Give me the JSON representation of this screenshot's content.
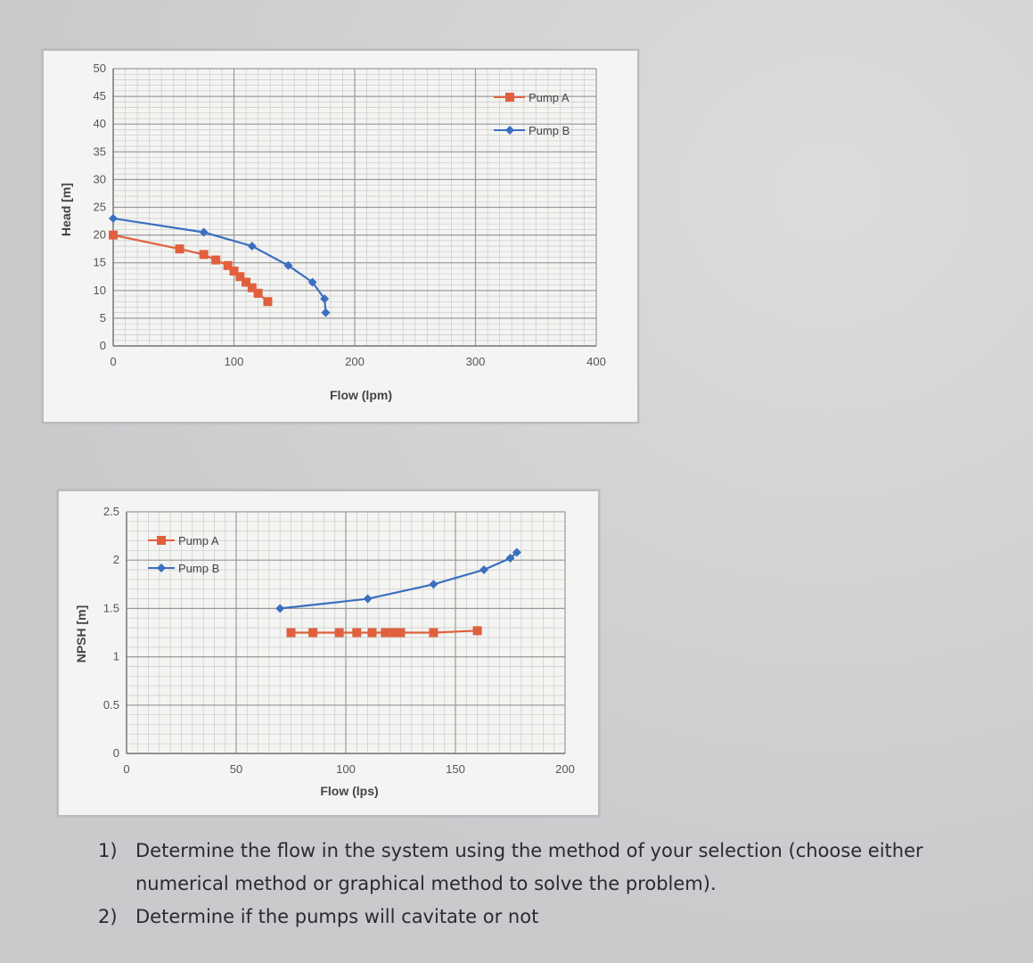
{
  "chart_data": [
    {
      "type": "line",
      "title": "",
      "xlabel": "Flow (lpm)",
      "ylabel": "Head [m]",
      "xlim": [
        0,
        400
      ],
      "ylim": [
        0,
        50
      ],
      "x_ticks": [
        "0",
        "100",
        "200",
        "300",
        "400"
      ],
      "y_ticks": [
        "0",
        "5",
        "10",
        "15",
        "20",
        "25",
        "30",
        "35",
        "40",
        "45",
        "50"
      ],
      "grid": true,
      "legend_position": "top-right",
      "series": [
        {
          "name": "Pump A",
          "color": "#e0603e",
          "marker": "square",
          "x": [
            0,
            55,
            75,
            85,
            95,
            100,
            105,
            110,
            115,
            120,
            128
          ],
          "y": [
            20,
            17.5,
            16.5,
            15.5,
            14.5,
            13.5,
            12.5,
            11.5,
            10.5,
            9.5,
            8
          ]
        },
        {
          "name": "Pump B",
          "color": "#3a6fc0",
          "marker": "diamond",
          "x": [
            0,
            75,
            115,
            145,
            165,
            175,
            176
          ],
          "y": [
            23,
            20.5,
            18,
            14.5,
            11.5,
            8.5,
            6
          ]
        }
      ]
    },
    {
      "type": "line",
      "title": "",
      "xlabel": "Flow (lps)",
      "ylabel": "NPSH [m]",
      "xlim": [
        0,
        200
      ],
      "ylim": [
        0,
        2.5
      ],
      "x_ticks": [
        "0",
        "50",
        "100",
        "150",
        "200"
      ],
      "y_ticks": [
        "0",
        "0.5",
        "1",
        "1.5",
        "2",
        "2.5"
      ],
      "grid": true,
      "legend_position": "top-left",
      "series": [
        {
          "name": "Pump A",
          "color": "#e0603e",
          "marker": "square",
          "x": [
            75,
            85,
            97,
            105,
            112,
            118,
            122,
            125,
            140,
            160
          ],
          "y": [
            1.25,
            1.25,
            1.25,
            1.25,
            1.25,
            1.25,
            1.25,
            1.25,
            1.25,
            1.27
          ]
        },
        {
          "name": "Pump B",
          "color": "#3a6fc0",
          "marker": "diamond",
          "x": [
            70,
            110,
            140,
            163,
            175,
            178
          ],
          "y": [
            1.5,
            1.6,
            1.75,
            1.9,
            2.02,
            2.08
          ]
        }
      ]
    }
  ],
  "charts": [
    {
      "ylabel": "Head [m]",
      "xlabel": "Flow (lpm)",
      "legend": [
        "Pump A",
        "Pump B"
      ]
    },
    {
      "ylabel": "NPSH [m]",
      "xlabel": "Flow (lps)",
      "legend": [
        "Pump A",
        "Pump B"
      ]
    }
  ],
  "questions": [
    {
      "number": "1)",
      "text": "Determine the flow in the system using the method of your selection (choose either numerical method or graphical method to solve the problem)."
    },
    {
      "number": "2)",
      "text": "Determine if the pumps will cavitate or not"
    }
  ]
}
